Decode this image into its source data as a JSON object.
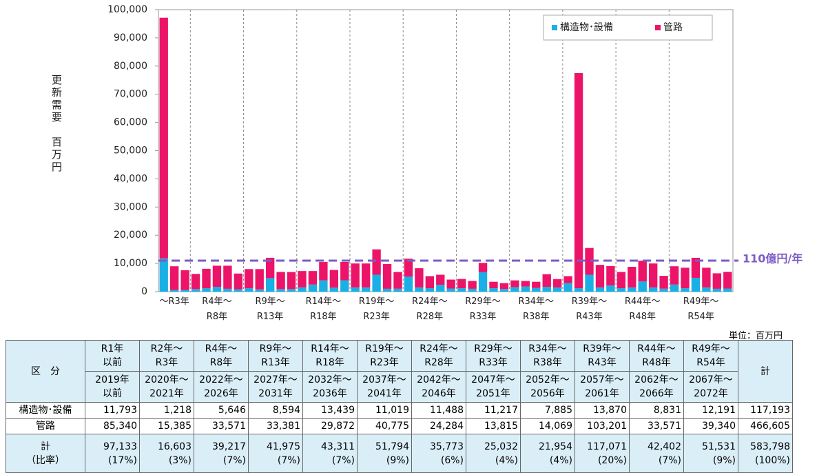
{
  "chart_data": {
    "type": "stacked_bar",
    "y_label": "更新需要　百万円",
    "categories": [
      "～R3年",
      null,
      null,
      "R4年～\nR8年",
      null,
      null,
      null,
      null,
      "R9年～\nR13年",
      null,
      null,
      null,
      null,
      "R14年～\nR18年",
      null,
      null,
      null,
      null,
      "R19年～\nR23年",
      null,
      null,
      null,
      null,
      "R24年～\nR28年",
      null,
      null,
      null,
      null,
      "R29年～\nR33年",
      null,
      null,
      null,
      null,
      "R34年～\nR38年",
      null,
      null,
      null,
      null,
      "R39年～\nR43年",
      null,
      null,
      null,
      null,
      "R44年～\nR48年",
      null,
      null,
      null,
      null,
      "R49年～\nR54年",
      null,
      null,
      null,
      null,
      null
    ],
    "series": [
      {
        "name": "構造物･設備",
        "color": "#1ab0e6",
        "values": [
          11793,
          600,
          618,
          900,
          1200,
          1700,
          1000,
          846,
          1200,
          800,
          4800,
          900,
          894,
          1500,
          2500,
          4000,
          1400,
          4039,
          1500,
          1500,
          6000,
          1000,
          1019,
          5300,
          1500,
          1200,
          2400,
          1088,
          1200,
          1000,
          6900,
          1200,
          917,
          1600,
          1800,
          1300,
          1700,
          1485,
          3000,
          1200,
          6000,
          1500,
          2170,
          1200,
          1500,
          3600,
          1500,
          1031,
          2500,
          1200,
          4900,
          1500,
          1000,
          1091
        ]
      },
      {
        "name": "管路",
        "color": "#ec1468",
        "values": [
          85340,
          8400,
          6985,
          5400,
          6900,
          7500,
          8200,
          5571,
          6800,
          7200,
          7200,
          6100,
          6081,
          5800,
          4800,
          6500,
          6300,
          6472,
          8500,
          8500,
          9000,
          8800,
          5975,
          6400,
          6800,
          4300,
          3600,
          3185,
          3300,
          2800,
          3300,
          2300,
          2115,
          2400,
          2000,
          2200,
          4500,
          2969,
          2500,
          76300,
          9500,
          8000,
          6901,
          5800,
          7300,
          7400,
          8500,
          4571,
          6500,
          7300,
          7100,
          7000,
          5500,
          5940
        ]
      }
    ],
    "ylim": [
      0,
      100000
    ],
    "yticks": [
      0,
      {
        "value": 10000,
        "label": "10,000"
      },
      {
        "value": 20000,
        "label": "20,000"
      },
      {
        "value": 30000,
        "label": "30,000"
      },
      {
        "value": 40000,
        "label": "40,000"
      },
      {
        "value": 50000,
        "label": "50,000"
      },
      {
        "value": 60000,
        "label": "60,000"
      },
      {
        "value": 70000,
        "label": "70,000"
      },
      {
        "value": 80000,
        "label": "80,000"
      },
      {
        "value": 90000,
        "label": "90,000"
      },
      {
        "value": 100000,
        "label": "100,000"
      }
    ],
    "reference_line": {
      "value": 11000,
      "label": "110億円/年",
      "color": "#7b5cc4"
    },
    "legend": "upper right"
  },
  "table": {
    "unit": "単位：百万円",
    "corner": "区　分",
    "total_header": "計",
    "periods_wareki": [
      "R1年\n以前",
      "R2年～\nR3年",
      "R4年～\nR8年",
      "R9年～\nR13年",
      "R14年～\nR18年",
      "R19年～\nR23年",
      "R24年～\nR28年",
      "R29年～\nR33年",
      "R34年～\nR38年",
      "R39年～\nR43年",
      "R44年～\nR48年",
      "R49年～\nR54年"
    ],
    "periods_seireki": [
      "2019年\n以前",
      "2020年～\n2021年",
      "2022年～\n2026年",
      "2027年～\n2031年",
      "2032年～\n2036年",
      "2037年～\n2041年",
      "2042年～\n2046年",
      "2047年～\n2051年",
      "2052年～\n2056年",
      "2057年～\n2061年",
      "2062年～\n2066年",
      "2067年～\n2072年"
    ],
    "rows": [
      {
        "label": "構造物･設備",
        "cells": [
          "11,793",
          "1,218",
          "5,646",
          "8,594",
          "13,439",
          "11,019",
          "11,488",
          "11,217",
          "7,885",
          "13,870",
          "8,831",
          "12,191"
        ],
        "total": "117,193"
      },
      {
        "label": "管路",
        "cells": [
          "85,340",
          "15,385",
          "33,571",
          "33,381",
          "29,872",
          "40,775",
          "24,284",
          "13,815",
          "14,069",
          "103,201",
          "33,571",
          "39,340"
        ],
        "total": "466,605"
      }
    ],
    "sum_row": {
      "label": "計\n（比率）",
      "cells": [
        "97,133",
        "16,603",
        "39,217",
        "41,975",
        "43,311",
        "51,794",
        "35,773",
        "25,032",
        "21,954",
        "117,071",
        "42,402",
        "51,531"
      ],
      "ratios": [
        "(17%)",
        "(3%)",
        "(7%)",
        "(7%)",
        "(7%)",
        "(9%)",
        "(6%)",
        "(4%)",
        "(4%)",
        "(20%)",
        "(7%)",
        "(9%)"
      ],
      "total": "583,798",
      "total_ratio": "(100%)"
    }
  }
}
